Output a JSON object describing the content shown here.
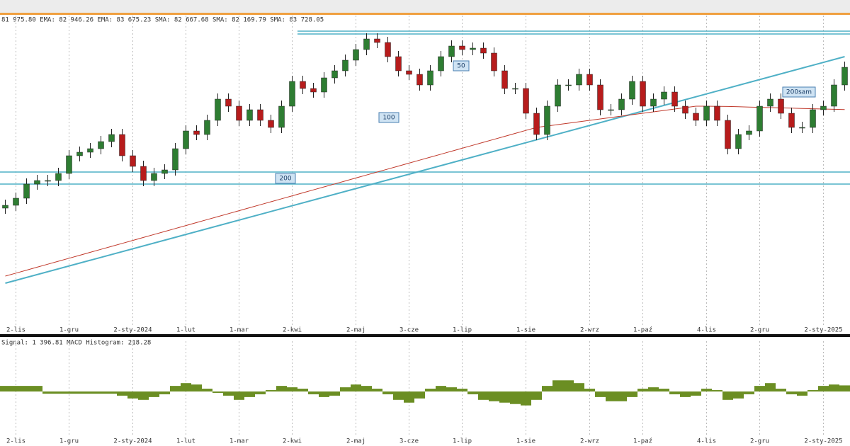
{
  "chart_data": [
    {
      "type": "candlestick",
      "header": "81 975.80 EMA: 82 946.26 EMA: 83 675.23 SMA: 82 667.68 SMA: 82 169.79 SMA: 83 728.05",
      "categories": [
        null,
        "2-lis",
        null,
        null,
        null,
        null,
        "1-gru",
        null,
        null,
        null,
        null,
        null,
        "2-sty-2024",
        null,
        null,
        null,
        null,
        "1-lut",
        null,
        null,
        null,
        null,
        "1-mar",
        null,
        null,
        null,
        null,
        "2-kwi",
        null,
        null,
        null,
        null,
        null,
        "2-maj",
        null,
        null,
        null,
        null,
        "3-cze",
        null,
        null,
        null,
        null,
        "1-lip",
        null,
        null,
        null,
        null,
        null,
        "1-sie",
        null,
        null,
        null,
        null,
        null,
        "2-wrz",
        null,
        null,
        null,
        null,
        "1-paź",
        null,
        null,
        null,
        null,
        null,
        "4-lis",
        null,
        null,
        null,
        null,
        "2-gru",
        null,
        null,
        null,
        null,
        null,
        "2-sty-2025",
        null,
        null
      ],
      "open": [
        72800,
        73000,
        73500,
        74500,
        74750,
        74750,
        75250,
        76500,
        76750,
        77000,
        77500,
        78000,
        76500,
        75750,
        74750,
        75250,
        75500,
        77000,
        78250,
        78000,
        79000,
        80500,
        80000,
        79000,
        79750,
        79000,
        78500,
        80000,
        81750,
        81250,
        81000,
        82000,
        82500,
        83250,
        84000,
        84750,
        84500,
        83500,
        82500,
        82250,
        81500,
        82500,
        83500,
        84250,
        84000,
        84100,
        83750,
        82500,
        81250,
        81250,
        79500,
        78000,
        80000,
        81500,
        81500,
        82250,
        81500,
        79750,
        79750,
        80500,
        81750,
        80000,
        80500,
        81000,
        80000,
        79500,
        79000,
        80000,
        79000,
        77000,
        78000,
        78250,
        80000,
        80500,
        79500,
        78500,
        78500,
        79750,
        80000,
        81500
      ],
      "high": [
        73400,
        73900,
        74900,
        75150,
        75150,
        75650,
        76900,
        77150,
        77400,
        77900,
        78400,
        78400,
        76900,
        76150,
        75650,
        75900,
        77400,
        78650,
        78650,
        79400,
        80900,
        80900,
        80400,
        80150,
        80150,
        79400,
        80400,
        82150,
        82150,
        81650,
        82400,
        82900,
        83650,
        84400,
        85150,
        85150,
        84900,
        83900,
        82900,
        82650,
        82900,
        83900,
        84650,
        84650,
        84500,
        84500,
        84150,
        82900,
        81650,
        81650,
        79900,
        80400,
        81900,
        81900,
        82650,
        82650,
        81900,
        80150,
        80900,
        82150,
        82150,
        80900,
        81400,
        81400,
        80400,
        79900,
        80400,
        80400,
        79400,
        78400,
        78650,
        80400,
        80900,
        80900,
        79900,
        78900,
        80150,
        80400,
        81900,
        83150
      ],
      "low": [
        72400,
        72600,
        73100,
        74100,
        74350,
        74350,
        74850,
        76100,
        76350,
        76600,
        77100,
        76100,
        75350,
        74350,
        74350,
        74850,
        75100,
        76600,
        77600,
        77600,
        78600,
        79600,
        78600,
        78600,
        78600,
        78100,
        78100,
        79600,
        80850,
        80600,
        80600,
        81600,
        82100,
        82850,
        83600,
        84100,
        83100,
        82100,
        81850,
        81100,
        81100,
        82100,
        83100,
        83600,
        83600,
        83350,
        82100,
        80850,
        80850,
        79100,
        77600,
        77600,
        79600,
        81100,
        81100,
        81100,
        79350,
        79350,
        79350,
        80100,
        79600,
        79600,
        80100,
        79600,
        79100,
        78600,
        78600,
        78600,
        76600,
        76600,
        77600,
        77850,
        79600,
        79100,
        78100,
        78100,
        78100,
        79350,
        79600,
        81100
      ],
      "close": [
        73000,
        73500,
        74500,
        74750,
        74750,
        75250,
        76500,
        76750,
        77000,
        77500,
        78000,
        76500,
        75750,
        74750,
        75250,
        75500,
        77000,
        78250,
        78000,
        79000,
        80500,
        80000,
        79000,
        79750,
        79000,
        78500,
        80000,
        81750,
        81250,
        81000,
        82000,
        82500,
        83250,
        84000,
        84750,
        84500,
        83500,
        82500,
        82250,
        81500,
        82500,
        83500,
        84250,
        84000,
        84100,
        83750,
        82500,
        81250,
        81250,
        79500,
        78000,
        80000,
        81500,
        81500,
        82250,
        81500,
        79750,
        79750,
        80500,
        81750,
        80000,
        80500,
        81000,
        80000,
        79500,
        79000,
        80000,
        79000,
        77000,
        78000,
        78250,
        80000,
        80500,
        79500,
        78500,
        78500,
        79750,
        80000,
        81500,
        82750
      ],
      "up_color": "#2e7d32",
      "down_color": "#b71c1c",
      "lines": [
        {
          "color": "#c0392b",
          "values": [
            68000,
            68210,
            68420,
            68630,
            68840,
            69050,
            69260,
            69470,
            69680,
            69890,
            70100,
            70310,
            70520,
            70730,
            70940,
            71150,
            71360,
            71570,
            71780,
            71990,
            72200,
            72410,
            72620,
            72830,
            73040,
            73250,
            73460,
            73670,
            73880,
            74090,
            74300,
            74510,
            74720,
            74930,
            75140,
            75350,
            75560,
            75770,
            75980,
            76190,
            76400,
            76610,
            76820,
            77030,
            77240,
            77450,
            77660,
            77870,
            78080,
            78290,
            78500,
            78600,
            78700,
            78800,
            78900,
            79000,
            79100,
            79200,
            79300,
            79400,
            79500,
            79600,
            79700,
            79800,
            79900,
            80000,
            80000,
            79990,
            79980,
            79960,
            79940,
            79920,
            79900,
            79880,
            79860,
            79840,
            79820,
            79800,
            79780,
            79760
          ]
        }
      ],
      "hlines": [
        85300,
        85100,
        75350,
        74500
      ],
      "hline_color": "#4fb0c6",
      "trendline": [
        67500,
        83500
      ],
      "annotations": [
        "50",
        "100",
        "200",
        "200sam"
      ],
      "ylim": [
        64250,
        86000
      ],
      "grid": true
    },
    {
      "type": "bar",
      "header": "Signal: 1 396.81 MACD Histogram: 218.28",
      "categories": [
        null,
        "2-lis",
        null,
        null,
        null,
        null,
        "1-gru",
        null,
        null,
        null,
        null,
        null,
        "2-sty-2024",
        null,
        null,
        null,
        null,
        "1-lut",
        null,
        null,
        null,
        null,
        "1-mar",
        null,
        null,
        null,
        null,
        "2-kwi",
        null,
        null,
        null,
        null,
        null,
        "2-maj",
        null,
        null,
        null,
        null,
        "3-cze",
        null,
        null,
        null,
        null,
        "1-lip",
        null,
        null,
        null,
        null,
        null,
        "1-sie",
        null,
        null,
        null,
        null,
        null,
        "2-wrz",
        null,
        null,
        null,
        null,
        "1-paź",
        null,
        null,
        null,
        null,
        null,
        "4-lis",
        null,
        null,
        null,
        null,
        "2-gru",
        null,
        null,
        null,
        null,
        null,
        "2-sty-2025",
        null,
        null
      ],
      "values": [
        200,
        200,
        200,
        200,
        -80,
        -80,
        -80,
        -80,
        -80,
        -80,
        -80,
        -150,
        -250,
        -300,
        -200,
        -100,
        200,
        300,
        250,
        100,
        -50,
        -150,
        -300,
        -200,
        -100,
        50,
        200,
        150,
        100,
        -100,
        -200,
        -150,
        150,
        250,
        200,
        100,
        -100,
        -300,
        -400,
        -250,
        100,
        200,
        150,
        100,
        -100,
        -300,
        -350,
        -400,
        -450,
        -500,
        -300,
        200,
        400,
        400,
        300,
        100,
        -200,
        -350,
        -350,
        -200,
        100,
        150,
        100,
        -100,
        -200,
        -150,
        100,
        50,
        -300,
        -250,
        -100,
        200,
        300,
        100,
        -100,
        -150,
        50,
        200,
        250,
        218.28
      ],
      "color": "#6b8e23",
      "ylim": [
        -1600,
        1600
      ],
      "grid": true
    }
  ]
}
